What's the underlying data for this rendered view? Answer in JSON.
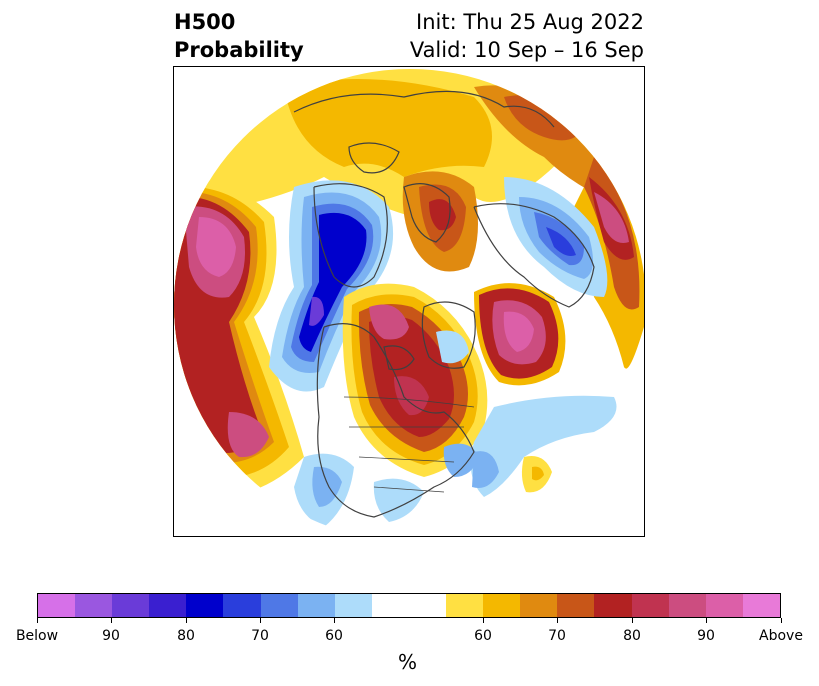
{
  "header": {
    "title_line1": "H500",
    "title_line2": "Probability",
    "init": "Init: Thu 25 Aug 2022",
    "valid": "Valid: 10 Sep – 16 Sep"
  },
  "colorbar": {
    "unit_label": "%",
    "colors": [
      "#d670e8",
      "#9a57e0",
      "#6a3bd8",
      "#3a1fd0",
      "#0000cc",
      "#2a3edc",
      "#4f78e6",
      "#7bb2f2",
      "#addcfa",
      "#ffffff",
      "#ffffff",
      "#ffe042",
      "#f4b800",
      "#e08a10",
      "#c85618",
      "#b22222",
      "#c03350",
      "#cc4d80",
      "#dc5fa8",
      "#e87ad8"
    ],
    "tick_labels": [
      "Below",
      "90",
      "80",
      "70",
      "60",
      "60",
      "70",
      "80",
      "90",
      "Above"
    ]
  },
  "map": {
    "palette": {
      "below_far": "#d670e8",
      "below_90": "#9a57e0",
      "below_80": "#3a1fd0",
      "below_75": "#0000cc",
      "below_70": "#2a3edc",
      "below_65": "#4f78e6",
      "below_60": "#7bb2f2",
      "below_55": "#addcfa",
      "above_55": "#ffe042",
      "above_60": "#f4b800",
      "above_65": "#e08a10",
      "above_70": "#c85618",
      "above_75": "#b22222",
      "above_80": "#c03350",
      "above_85": "#cc4d80",
      "above_90": "#dc5fa8",
      "above_far": "#e87ad8",
      "coast": "#404040"
    }
  }
}
